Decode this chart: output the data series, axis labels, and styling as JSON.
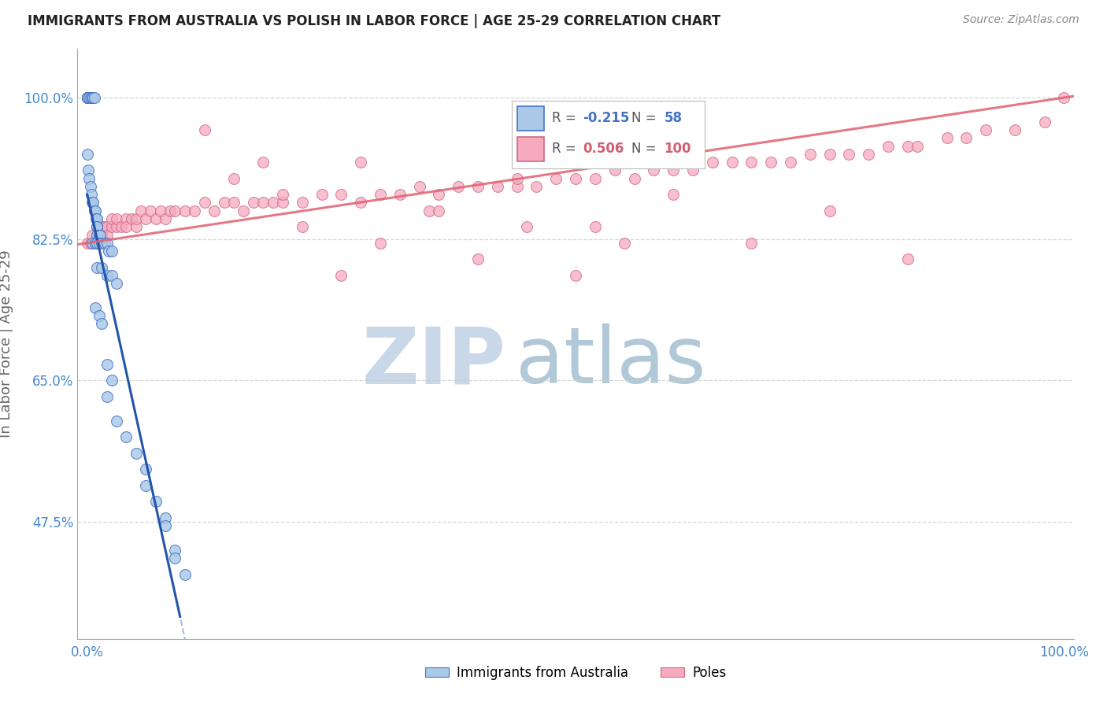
{
  "title": "IMMIGRANTS FROM AUSTRALIA VS POLISH IN LABOR FORCE | AGE 25-29 CORRELATION CHART",
  "source": "Source: ZipAtlas.com",
  "ylabel": "In Labor Force | Age 25-29",
  "ytick_labels": [
    "100.0%",
    "82.5%",
    "65.0%",
    "47.5%"
  ],
  "ytick_values": [
    1.0,
    0.825,
    0.65,
    0.475
  ],
  "xrange": [
    -0.01,
    1.01
  ],
  "yrange": [
    0.33,
    1.06
  ],
  "australia_color": "#aac8e8",
  "australia_edge_color": "#4472c4",
  "poles_color": "#f5aabf",
  "poles_edge_color": "#d06880",
  "marker_size": 100,
  "background_color": "#ffffff",
  "watermark_zip": "ZIP",
  "watermark_atlas": "atlas",
  "watermark_color_zip": "#c8d8e8",
  "watermark_color_atlas": "#b0c8d8",
  "legend_label_australia": "Immigrants from Australia",
  "legend_label_poles": "Poles",
  "grid_color": "#cccccc",
  "title_color": "#222222",
  "source_color": "#888888",
  "ylabel_color": "#666666",
  "yticklabel_color": "#4488cc",
  "xticklabel_color": "#4488cc",
  "reg_australia_solid_color": "#2255aa",
  "reg_australia_dash_color": "#99aacc",
  "reg_poles_color": "#e06070",
  "aus_points_x": [
    0.0,
    0.0,
    0.0,
    0.0,
    0.0,
    0.002,
    0.003,
    0.005,
    0.006,
    0.007,
    0.0,
    0.001,
    0.002,
    0.003,
    0.004,
    0.005,
    0.006,
    0.007,
    0.008,
    0.009,
    0.01,
    0.01,
    0.01,
    0.01,
    0.012,
    0.013,
    0.005,
    0.008,
    0.01,
    0.012,
    0.015,
    0.018,
    0.02,
    0.022,
    0.025,
    0.01,
    0.015,
    0.02,
    0.025,
    0.03,
    0.008,
    0.012,
    0.015,
    0.02,
    0.025,
    0.02,
    0.03,
    0.04,
    0.05,
    0.06,
    0.06,
    0.07,
    0.08,
    0.08,
    0.09,
    0.09,
    0.1
  ],
  "aus_points_y": [
    1.0,
    1.0,
    1.0,
    1.0,
    1.0,
    1.0,
    1.0,
    1.0,
    1.0,
    1.0,
    0.93,
    0.91,
    0.9,
    0.89,
    0.88,
    0.87,
    0.87,
    0.86,
    0.86,
    0.85,
    0.85,
    0.84,
    0.84,
    0.83,
    0.83,
    0.83,
    0.82,
    0.82,
    0.82,
    0.82,
    0.82,
    0.82,
    0.82,
    0.81,
    0.81,
    0.79,
    0.79,
    0.78,
    0.78,
    0.77,
    0.74,
    0.73,
    0.72,
    0.67,
    0.65,
    0.63,
    0.6,
    0.58,
    0.56,
    0.54,
    0.52,
    0.5,
    0.48,
    0.47,
    0.44,
    0.43,
    0.41
  ],
  "pol_points_x": [
    0.0,
    0.003,
    0.005,
    0.008,
    0.01,
    0.01,
    0.012,
    0.015,
    0.015,
    0.018,
    0.02,
    0.02,
    0.025,
    0.025,
    0.03,
    0.03,
    0.035,
    0.04,
    0.04,
    0.045,
    0.05,
    0.05,
    0.055,
    0.06,
    0.065,
    0.07,
    0.075,
    0.08,
    0.085,
    0.09,
    0.1,
    0.11,
    0.12,
    0.13,
    0.14,
    0.15,
    0.16,
    0.17,
    0.18,
    0.19,
    0.2,
    0.22,
    0.24,
    0.26,
    0.28,
    0.3,
    0.32,
    0.34,
    0.36,
    0.38,
    0.4,
    0.42,
    0.44,
    0.46,
    0.48,
    0.5,
    0.52,
    0.54,
    0.56,
    0.58,
    0.6,
    0.62,
    0.64,
    0.66,
    0.68,
    0.7,
    0.72,
    0.74,
    0.76,
    0.78,
    0.8,
    0.82,
    0.84,
    0.85,
    0.88,
    0.9,
    0.92,
    0.95,
    0.98,
    1.0,
    0.15,
    0.18,
    0.22,
    0.26,
    0.3,
    0.35,
    0.4,
    0.45,
    0.5,
    0.55,
    0.12,
    0.2,
    0.28,
    0.36,
    0.44,
    0.52,
    0.6,
    0.68,
    0.76,
    0.84
  ],
  "pol_points_y": [
    0.82,
    0.82,
    0.83,
    0.82,
    0.84,
    0.83,
    0.83,
    0.84,
    0.83,
    0.84,
    0.84,
    0.83,
    0.84,
    0.85,
    0.84,
    0.85,
    0.84,
    0.85,
    0.84,
    0.85,
    0.84,
    0.85,
    0.86,
    0.85,
    0.86,
    0.85,
    0.86,
    0.85,
    0.86,
    0.86,
    0.86,
    0.86,
    0.87,
    0.86,
    0.87,
    0.87,
    0.86,
    0.87,
    0.87,
    0.87,
    0.87,
    0.87,
    0.88,
    0.88,
    0.87,
    0.88,
    0.88,
    0.89,
    0.88,
    0.89,
    0.89,
    0.89,
    0.89,
    0.89,
    0.9,
    0.9,
    0.9,
    0.91,
    0.9,
    0.91,
    0.91,
    0.91,
    0.92,
    0.92,
    0.92,
    0.92,
    0.92,
    0.93,
    0.93,
    0.93,
    0.93,
    0.94,
    0.94,
    0.94,
    0.95,
    0.95,
    0.96,
    0.96,
    0.97,
    1.0,
    0.9,
    0.92,
    0.84,
    0.78,
    0.82,
    0.86,
    0.8,
    0.84,
    0.78,
    0.82,
    0.96,
    0.88,
    0.92,
    0.86,
    0.9,
    0.84,
    0.88,
    0.82,
    0.86,
    0.8
  ]
}
